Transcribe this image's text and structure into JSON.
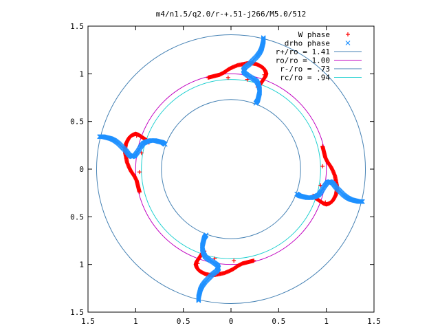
{
  "chart_data": {
    "type": "scatter",
    "title": "m4/n1.5/q2.0/r-+.51-j266/M5.0/512",
    "xlim": [
      -1.5,
      1.5
    ],
    "ylim": [
      -1.5,
      1.5
    ],
    "x_ticks": [
      -1.5,
      -1,
      -0.5,
      0,
      0.5,
      1,
      1.5
    ],
    "x_tick_labels": [
      "1.5",
      "1",
      "0.5",
      "0",
      "0.5",
      "1",
      "1.5"
    ],
    "y_ticks": [
      1.5,
      1,
      0.5,
      0,
      -0.5,
      -1,
      -1.5
    ],
    "y_tick_labels": [
      "1.5",
      "1",
      "0.5",
      "0",
      "0.5",
      "1",
      "1.5"
    ],
    "grid": false,
    "legend_position": "top-right",
    "legend": [
      {
        "label": "W phase",
        "marker": "+",
        "color": "#ff0000"
      },
      {
        "label": "drho phase",
        "marker": "x",
        "color": "#1e90ff"
      },
      {
        "label": "r+/ro = 1.41",
        "marker": "line",
        "color": "#4682b4"
      },
      {
        "label": "ro/ro = 1.00",
        "marker": "line",
        "color": "#c000c0"
      },
      {
        "label": "r-/ro = .73",
        "marker": "line",
        "color": "#4682b4"
      },
      {
        "label": "rc/ro = .94",
        "marker": "line",
        "color": "#20d0d0"
      }
    ],
    "circles": [
      {
        "name": "r+/ro",
        "r": 1.41,
        "color": "#4682b4"
      },
      {
        "name": "ro/ro",
        "r": 1.0,
        "color": "#c000c0"
      },
      {
        "name": "r-/ro",
        "r": 0.73,
        "color": "#4682b4"
      },
      {
        "name": "rc/ro",
        "r": 0.94,
        "color": "#20d0d0"
      }
    ],
    "series": [
      {
        "name": "W phase",
        "color": "#ff0000",
        "marker": "+",
        "arms": 4,
        "arm_points_base": [
          [
            -0.96,
            -0.24
          ],
          [
            -0.97,
            -0.2
          ],
          [
            -0.98,
            -0.16
          ],
          [
            -0.99,
            -0.12
          ],
          [
            -1.01,
            -0.08
          ],
          [
            -1.03,
            -0.05
          ],
          [
            -1.05,
            -0.02
          ],
          [
            -1.07,
            0.02
          ],
          [
            -1.09,
            0.07
          ],
          [
            -1.1,
            0.12
          ],
          [
            -1.11,
            0.17
          ],
          [
            -1.11,
            0.22
          ],
          [
            -1.1,
            0.27
          ],
          [
            -1.08,
            0.31
          ],
          [
            -1.06,
            0.34
          ],
          [
            -1.03,
            0.36
          ],
          [
            -1.0,
            0.37
          ],
          [
            -0.97,
            0.36
          ],
          [
            -0.94,
            0.34
          ],
          [
            -0.91,
            0.32
          ],
          [
            -0.88,
            0.3
          ],
          [
            -0.86,
            0.28
          ]
        ],
        "sparse_points_base": [
          [
            -0.94,
            0.17
          ],
          [
            -0.96,
            -0.03
          ],
          [
            -0.99,
            0.35
          ]
        ]
      },
      {
        "name": "drho phase",
        "color": "#1e90ff",
        "marker": "x",
        "arms": 4,
        "arm_points_base": [
          [
            -1.38,
            0.34
          ],
          [
            -1.34,
            0.34
          ],
          [
            -1.3,
            0.33
          ],
          [
            -1.26,
            0.32
          ],
          [
            -1.22,
            0.3
          ],
          [
            -1.18,
            0.27
          ],
          [
            -1.14,
            0.23
          ],
          [
            -1.1,
            0.19
          ],
          [
            -1.07,
            0.15
          ],
          [
            -1.04,
            0.13
          ],
          [
            -1.01,
            0.14
          ],
          [
            -0.98,
            0.18
          ],
          [
            -0.95,
            0.23
          ],
          [
            -0.92,
            0.27
          ],
          [
            -0.88,
            0.29
          ],
          [
            -0.84,
            0.3
          ],
          [
            -0.8,
            0.3
          ],
          [
            -0.76,
            0.29
          ],
          [
            -0.72,
            0.28
          ],
          [
            -0.69,
            0.26
          ]
        ]
      }
    ]
  }
}
